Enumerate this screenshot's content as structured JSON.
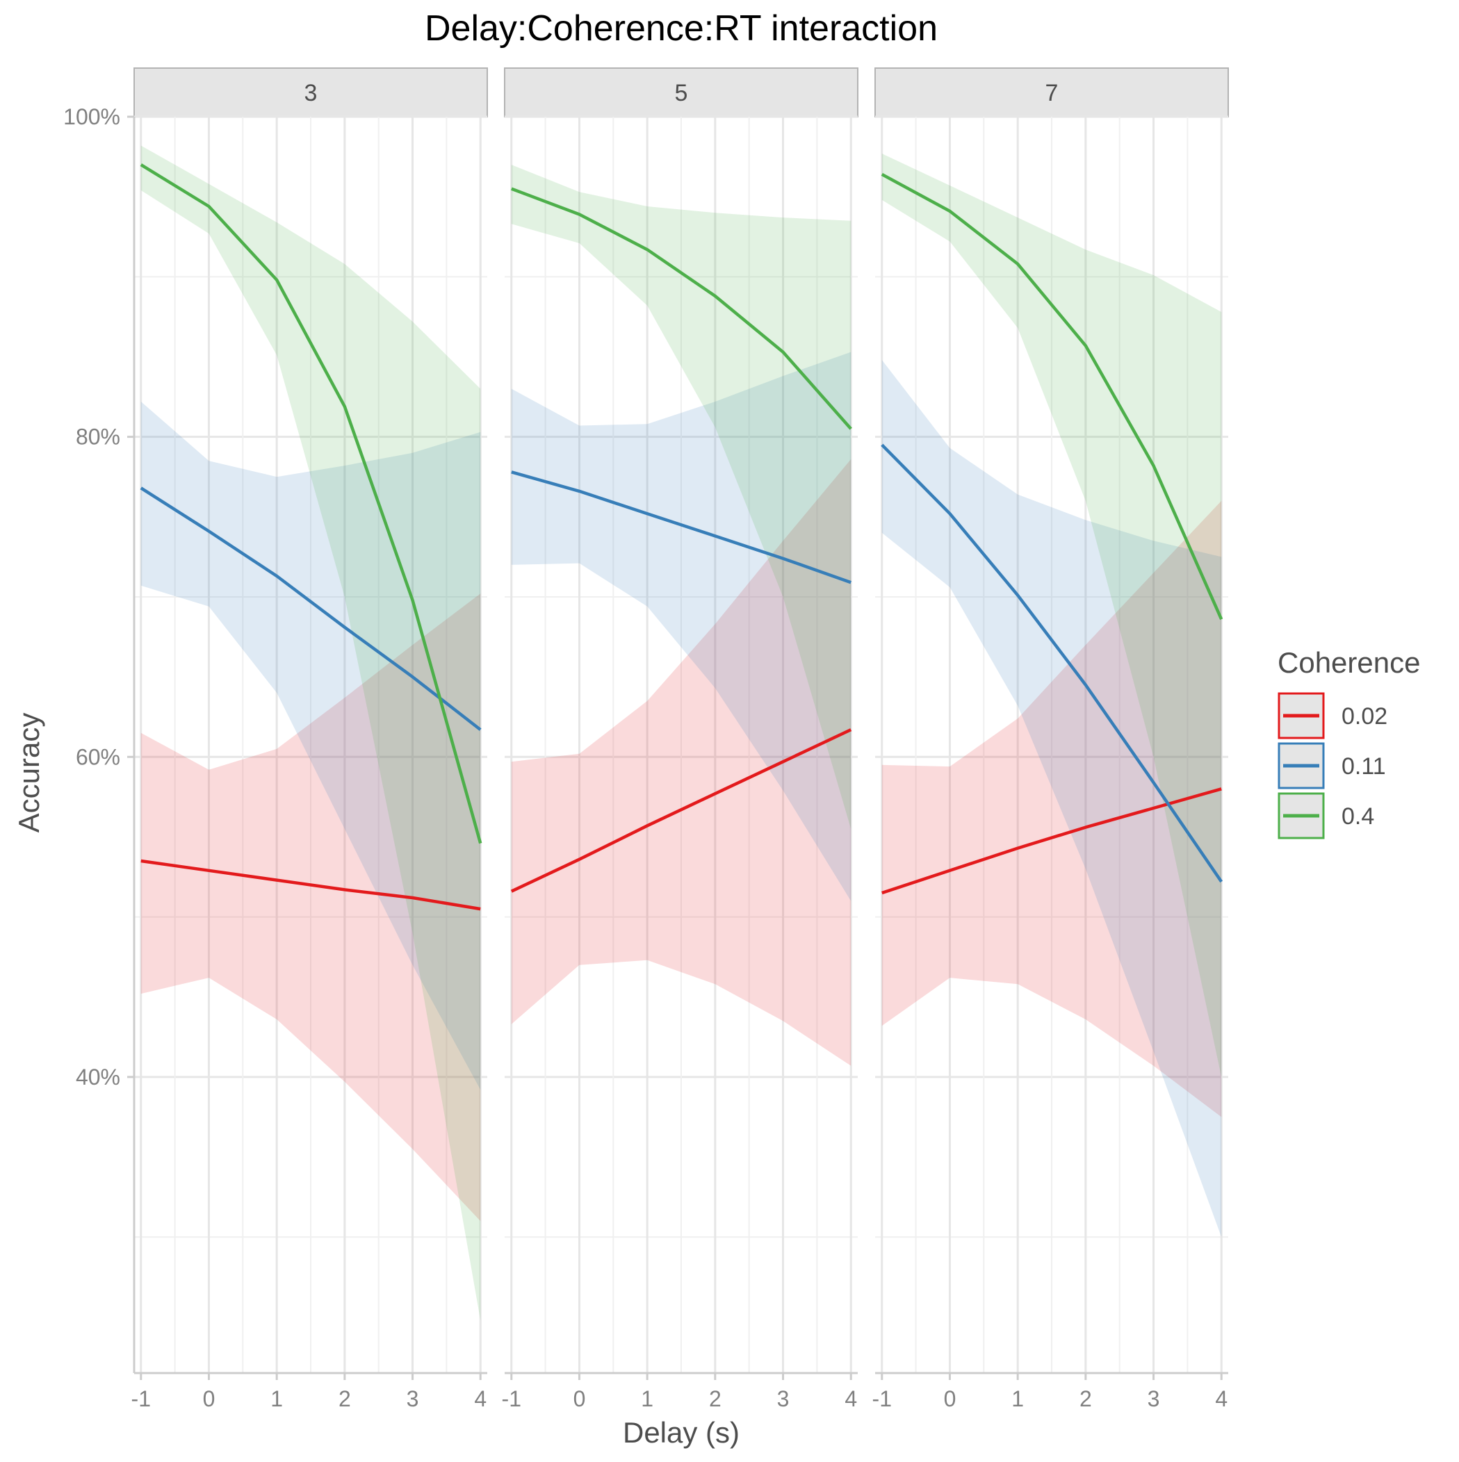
{
  "chart_data": {
    "type": "line",
    "title": "Delay:Coherence:RT interaction",
    "xlabel": "Delay (s)",
    "ylabel": "Accuracy",
    "x": [
      -1,
      0,
      1,
      2,
      3,
      4
    ],
    "x_tick_labels": [
      "-1",
      "0",
      "1",
      "2",
      "3",
      "4"
    ],
    "y_ticks": [
      0.4,
      0.6,
      0.8,
      1.0
    ],
    "y_tick_labels": [
      "40%",
      "60%",
      "80%",
      "100%"
    ],
    "ylim": [
      0.215,
      1.0
    ],
    "xlim": [
      -1.1,
      4.1
    ],
    "grid": true,
    "legend": {
      "title": "Coherence",
      "position": "right"
    },
    "colors": {
      "0.02": "#e31a1c",
      "0.11": "#377eb8",
      "0.4": "#4daf4a"
    },
    "panels": [
      {
        "label": "3",
        "series": [
          {
            "name": "0.02",
            "values": [
              0.535,
              0.529,
              0.523,
              0.517,
              0.512,
              0.505
            ],
            "lower": [
              0.452,
              0.462,
              0.436,
              0.397,
              0.355,
              0.31
            ],
            "upper": [
              0.615,
              0.592,
              0.605,
              0.637,
              0.67,
              0.702
            ]
          },
          {
            "name": "0.11",
            "values": [
              0.768,
              0.741,
              0.713,
              0.681,
              0.65,
              0.617
            ],
            "lower": [
              0.707,
              0.694,
              0.64,
              0.555,
              0.47,
              0.392
            ],
            "upper": [
              0.822,
              0.785,
              0.775,
              0.782,
              0.79,
              0.803
            ]
          },
          {
            "name": "0.4",
            "values": [
              0.97,
              0.944,
              0.898,
              0.819,
              0.698,
              0.546
            ],
            "lower": [
              0.954,
              0.927,
              0.851,
              0.7,
              0.49,
              0.248
            ],
            "upper": [
              0.982,
              0.958,
              0.934,
              0.908,
              0.872,
              0.83
            ]
          }
        ]
      },
      {
        "label": "5",
        "series": [
          {
            "name": "0.02",
            "values": [
              0.516,
              0.536,
              0.557,
              0.577,
              0.597,
              0.617
            ],
            "lower": [
              0.433,
              0.47,
              0.473,
              0.458,
              0.435,
              0.407
            ],
            "upper": [
              0.597,
              0.602,
              0.635,
              0.683,
              0.735,
              0.786
            ]
          },
          {
            "name": "0.11",
            "values": [
              0.778,
              0.766,
              0.752,
              0.738,
              0.724,
              0.709
            ],
            "lower": [
              0.72,
              0.721,
              0.694,
              0.643,
              0.579,
              0.51
            ],
            "upper": [
              0.83,
              0.807,
              0.808,
              0.822,
              0.838,
              0.853
            ]
          },
          {
            "name": "0.4",
            "values": [
              0.955,
              0.939,
              0.917,
              0.888,
              0.853,
              0.805
            ],
            "lower": [
              0.933,
              0.921,
              0.882,
              0.806,
              0.7,
              0.555
            ],
            "upper": [
              0.97,
              0.953,
              0.944,
              0.94,
              0.937,
              0.935
            ]
          }
        ]
      },
      {
        "label": "7",
        "series": [
          {
            "name": "0.02",
            "values": [
              0.515,
              0.529,
              0.543,
              0.556,
              0.568,
              0.58
            ],
            "lower": [
              0.432,
              0.462,
              0.458,
              0.436,
              0.407,
              0.375
            ],
            "upper": [
              0.595,
              0.594,
              0.624,
              0.67,
              0.715,
              0.76
            ]
          },
          {
            "name": "0.11",
            "values": [
              0.795,
              0.752,
              0.701,
              0.645,
              0.584,
              0.522
            ],
            "lower": [
              0.74,
              0.706,
              0.632,
              0.53,
              0.416,
              0.3
            ],
            "upper": [
              0.848,
              0.793,
              0.764,
              0.748,
              0.735,
              0.725
            ]
          },
          {
            "name": "0.4",
            "values": [
              0.964,
              0.941,
              0.908,
              0.857,
              0.782,
              0.686
            ],
            "lower": [
              0.948,
              0.922,
              0.868,
              0.76,
              0.6,
              0.4
            ],
            "upper": [
              0.977,
              0.957,
              0.937,
              0.917,
              0.901,
              0.878
            ]
          }
        ]
      }
    ]
  }
}
